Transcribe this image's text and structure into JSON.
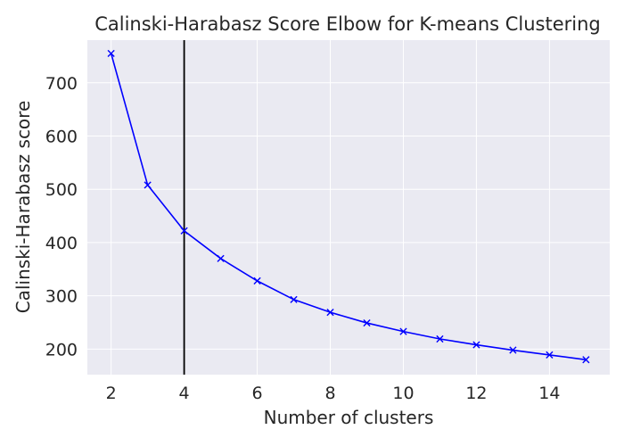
{
  "chart_data": {
    "type": "line",
    "title": "Calinski-Harabasz Score Elbow for K-means Clustering",
    "xlabel": "Number of clusters",
    "ylabel": "Calinski-Harabasz score",
    "xlim": [
      1.35,
      15.65
    ],
    "ylim": [
      152,
      780
    ],
    "xticks": [
      2,
      4,
      6,
      8,
      10,
      12,
      14
    ],
    "yticks": [
      200,
      300,
      400,
      500,
      600,
      700
    ],
    "grid": true,
    "series": [
      {
        "marker": "x",
        "color": "#0000ff",
        "x": [
          2,
          3,
          4,
          5,
          6,
          7,
          8,
          9,
          10,
          11,
          12,
          13,
          14,
          15
        ],
        "y": [
          755,
          508,
          422,
          370,
          328,
          293,
          269,
          249,
          233,
          219,
          208,
          198,
          189,
          180
        ]
      }
    ],
    "vline": {
      "x": 4,
      "color": "#000000"
    },
    "colors": {
      "background": "#eaeaf2",
      "grid": "#ffffff",
      "text": "#262626"
    }
  }
}
